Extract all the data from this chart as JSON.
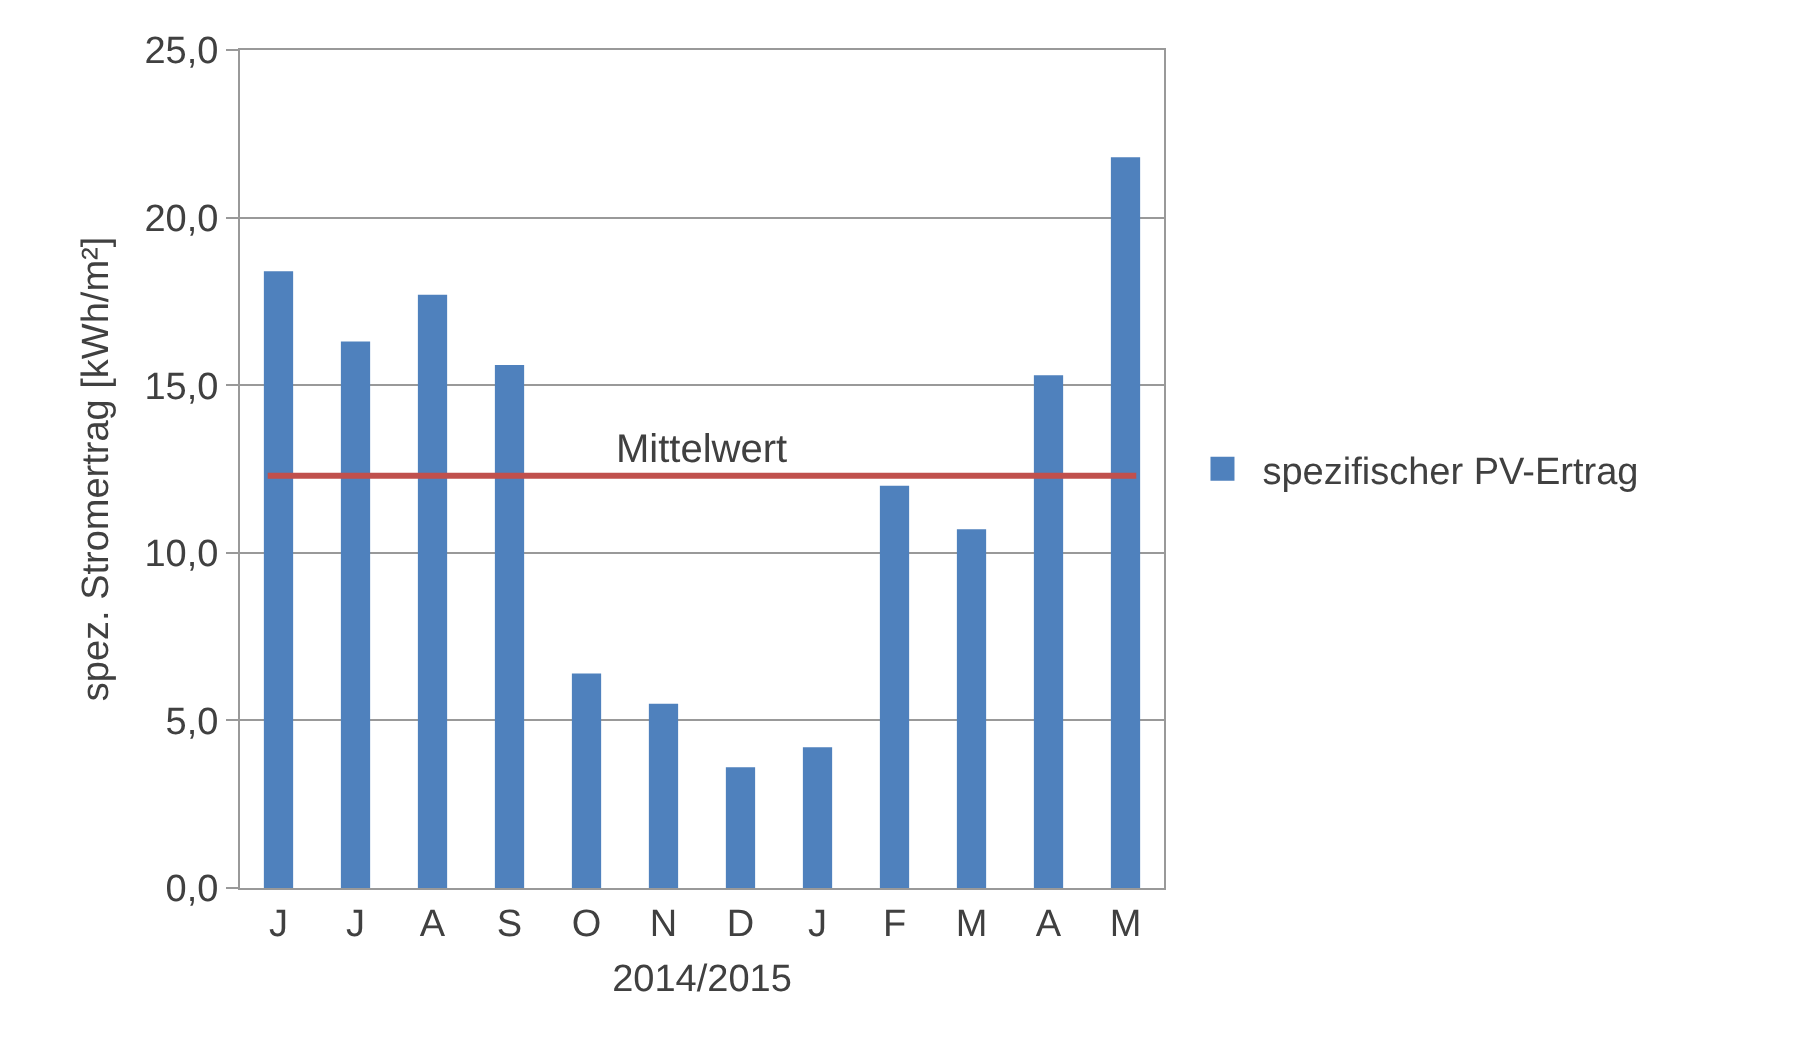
{
  "chart_data": {
    "type": "bar",
    "xlabel": "2014/2015",
    "ylabel": "spez. Stromertrag [kWh/m²]",
    "categories": [
      "J",
      "J",
      "A",
      "S",
      "O",
      "N",
      "D",
      "J",
      "F",
      "M",
      "A",
      "M"
    ],
    "series": [
      {
        "name": "spezifischer PV-Ertrag",
        "color": "#4f81bd",
        "values": [
          18.4,
          16.3,
          17.7,
          15.6,
          6.4,
          5.5,
          3.6,
          4.2,
          12.0,
          10.7,
          15.3,
          21.8
        ]
      }
    ],
    "ylim": [
      0,
      25
    ],
    "yticks": [
      {
        "value": 0,
        "label": "0,0"
      },
      {
        "value": 5,
        "label": "5,0"
      },
      {
        "value": 10,
        "label": "10,0"
      },
      {
        "value": 15,
        "label": "15,0"
      },
      {
        "value": 20,
        "label": "20,0"
      },
      {
        "value": 25,
        "label": "25,0"
      }
    ],
    "ref_lines": [
      {
        "axis": "y",
        "value": 12.3,
        "label": "Mittelwert",
        "color": "#c0504d"
      }
    ],
    "grid": "y",
    "legend": "right"
  }
}
